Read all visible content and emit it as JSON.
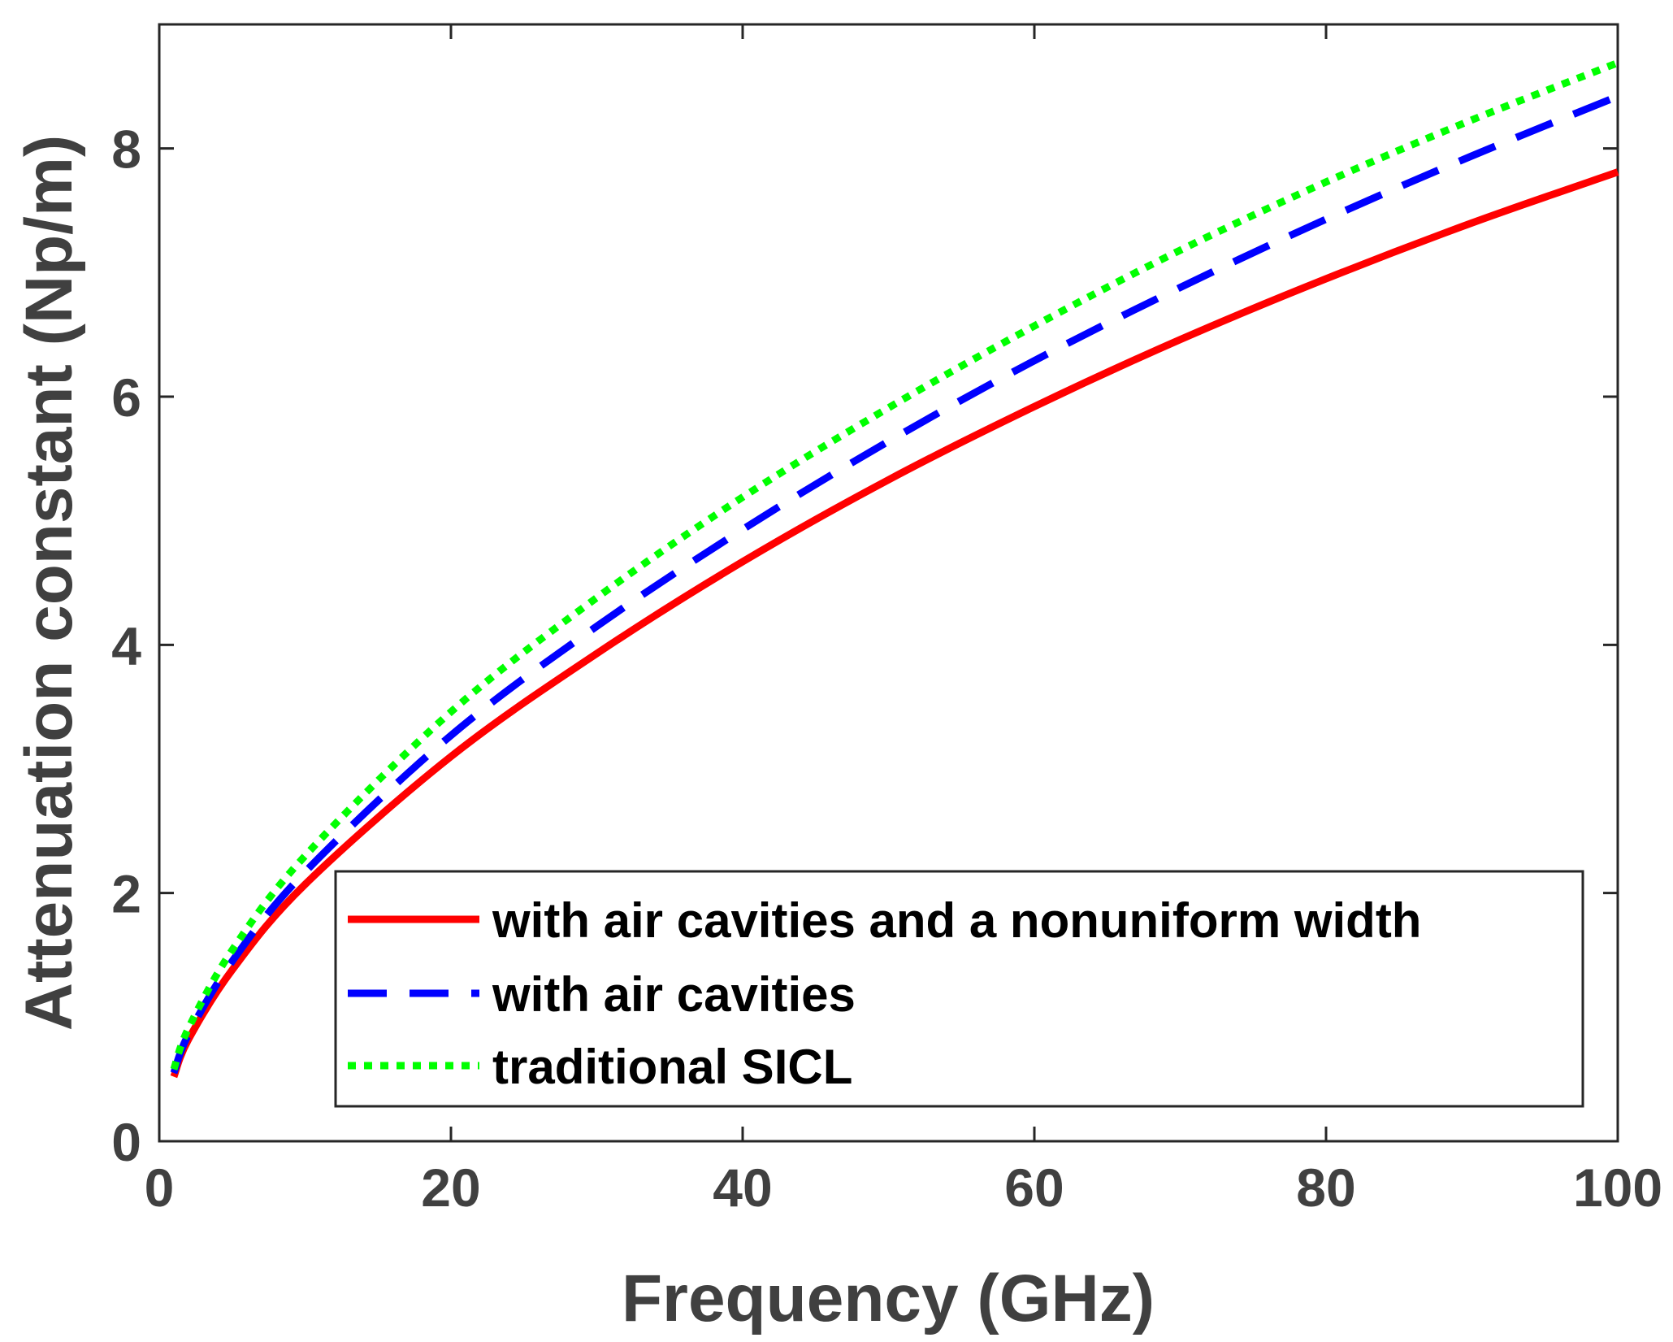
{
  "chart_data": {
    "type": "line",
    "title": "",
    "xlabel": "Frequency (GHz)",
    "ylabel": "Attenuation constant (Np/m)",
    "xlim": [
      0,
      100
    ],
    "ylim": [
      0,
      9
    ],
    "xticks": [
      0,
      20,
      40,
      60,
      80,
      100
    ],
    "yticks": [
      0,
      2,
      4,
      6,
      8
    ],
    "grid": false,
    "legend_position": "bottom-right",
    "x": [
      1,
      2,
      5,
      10,
      20,
      30,
      40,
      50,
      60,
      70,
      80,
      90,
      100
    ],
    "series": [
      {
        "name": "with air cavities and a nonuniform width",
        "style": "solid",
        "color": "#ff0000",
        "values": [
          0.52,
          0.82,
          1.38,
          2.07,
          3.1,
          3.93,
          4.67,
          5.33,
          5.92,
          6.46,
          6.95,
          7.4,
          7.81
        ]
      },
      {
        "name": "with air cavities",
        "style": "dashed",
        "color": "#0000ff",
        "values": [
          0.55,
          0.86,
          1.45,
          2.17,
          3.27,
          4.15,
          4.93,
          5.64,
          6.29,
          6.88,
          7.43,
          7.94,
          8.42
        ]
      },
      {
        "name": "traditional SICL",
        "style": "dotted",
        "color": "#00ff00",
        "values": [
          0.58,
          0.91,
          1.54,
          2.3,
          3.46,
          4.38,
          5.19,
          5.91,
          6.57,
          7.18,
          7.73,
          8.23,
          8.69
        ]
      }
    ]
  }
}
